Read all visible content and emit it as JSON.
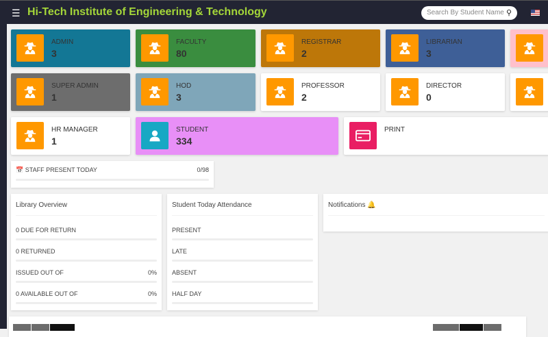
{
  "header": {
    "title": "Hi-Tech Institute of Engineering & Technology",
    "search_placeholder": "Search By Student Name"
  },
  "cards": [
    {
      "label": "ADMIN",
      "value": "3",
      "color": "#137795"
    },
    {
      "label": "FACULTY",
      "value": "80",
      "color": "#3a8d3f"
    },
    {
      "label": "REGISTRAR",
      "value": "2",
      "color": "#bd7709"
    },
    {
      "label": "LIBRARIAN",
      "value": "3",
      "color": "#3e5f97"
    },
    {
      "label": "",
      "value": "",
      "color": "#ffc0cb"
    },
    {
      "label": "SUPER ADMIN",
      "value": "1",
      "color": "#6d6d6d"
    },
    {
      "label": "HOD",
      "value": "3",
      "color": "#7fa6b9"
    },
    {
      "label": "PROFESSOR",
      "value": "2",
      "color": "#ffffff"
    },
    {
      "label": "DIRECTOR",
      "value": "0",
      "color": "#ffffff"
    },
    {
      "label": "",
      "value": "",
      "color": "#ffffff"
    },
    {
      "label": "HR MANAGER",
      "value": "1",
      "color": "#ffffff"
    },
    {
      "label": "STUDENT",
      "value": "334",
      "color": "#e88ff7"
    },
    {
      "label": "PRINT",
      "value": "",
      "color": "#ffffff"
    }
  ],
  "staff": {
    "label": "STAFF PRESENT TODAY",
    "value": "0/98",
    "progress": 0
  },
  "library": {
    "title": "Library Overview",
    "rows": [
      {
        "label": "0 DUE FOR RETURN",
        "pct": ""
      },
      {
        "label": "0 RETURNED",
        "pct": ""
      },
      {
        "label": "ISSUED OUT OF",
        "pct": "0%"
      },
      {
        "label": "0 AVAILABLE OUT OF",
        "pct": "0%"
      }
    ]
  },
  "attendance": {
    "title": "Student Today Attendance",
    "rows": [
      {
        "label": "PRESENT"
      },
      {
        "label": "LATE"
      },
      {
        "label": "ABSENT"
      },
      {
        "label": "HALF DAY"
      }
    ]
  },
  "notifications": {
    "title": "Notifications"
  }
}
